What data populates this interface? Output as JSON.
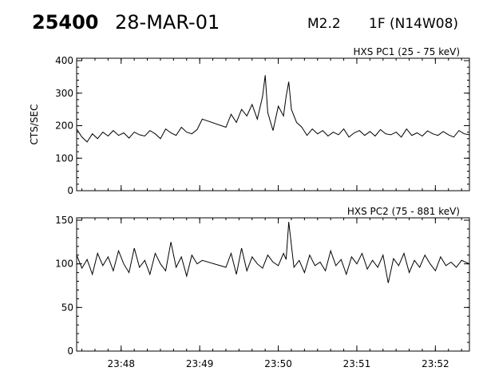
{
  "header": {
    "event_id": "25400",
    "date": "28-MAR-01",
    "flare_class": "M2.2",
    "flare_location": "1F (N14W08)"
  },
  "chart_data": [
    {
      "type": "line",
      "title": "HXS PC1 (25 - 75 keV)",
      "ylabel": "CTS/SEC",
      "xlim": [
        "23:47:26",
        "23:52:26"
      ],
      "ylim": [
        0,
        400
      ],
      "yticks": [
        0,
        100,
        200,
        300,
        400
      ],
      "xticks": [
        "23:48",
        "23:49",
        "23:50",
        "23:51",
        "23:52"
      ],
      "series": [
        {
          "x": [
            "23:47:26",
            "23:47:30",
            "23:47:34",
            "23:47:38",
            "23:47:42",
            "23:47:46",
            "23:47:50",
            "23:47:54",
            "23:47:58",
            "23:48:02",
            "23:48:06",
            "23:48:10",
            "23:48:14",
            "23:48:18",
            "23:48:22",
            "23:48:26",
            "23:48:30",
            "23:48:34",
            "23:48:38",
            "23:48:42",
            "23:48:46",
            "23:48:50",
            "23:48:54",
            "23:48:58",
            "23:49:02",
            "23:49:20",
            "23:49:24",
            "23:49:28",
            "23:49:32",
            "23:49:36",
            "23:49:40",
            "23:49:44",
            "23:49:48",
            "23:49:50",
            "23:49:52",
            "23:49:56",
            "23:50:00",
            "23:50:04",
            "23:50:06",
            "23:50:08",
            "23:50:10",
            "23:50:14",
            "23:50:18",
            "23:50:22",
            "23:50:26",
            "23:50:30",
            "23:50:34",
            "23:50:38",
            "23:50:42",
            "23:50:46",
            "23:50:50",
            "23:50:54",
            "23:50:58",
            "23:51:02",
            "23:51:06",
            "23:51:10",
            "23:51:14",
            "23:51:18",
            "23:51:22",
            "23:51:26",
            "23:51:30",
            "23:51:34",
            "23:51:38",
            "23:51:42",
            "23:51:46",
            "23:51:50",
            "23:51:54",
            "23:51:58",
            "23:52:02",
            "23:52:06",
            "23:52:10",
            "23:52:14",
            "23:52:18",
            "23:52:22",
            "23:52:26"
          ],
          "values": [
            190,
            165,
            150,
            175,
            160,
            180,
            168,
            185,
            170,
            178,
            162,
            180,
            172,
            168,
            185,
            175,
            160,
            190,
            178,
            170,
            195,
            180,
            175,
            188,
            220,
            195,
            235,
            210,
            250,
            230,
            265,
            220,
            290,
            355,
            240,
            185,
            260,
            230,
            290,
            335,
            250,
            210,
            195,
            170,
            190,
            175,
            185,
            168,
            180,
            172,
            190,
            165,
            178,
            185,
            170,
            182,
            168,
            188,
            175,
            172,
            180,
            165,
            190,
            170,
            178,
            168,
            184,
            175,
            170,
            182,
            172,
            165,
            185,
            175,
            172
          ]
        }
      ]
    },
    {
      "type": "line",
      "title": "HXS PC2 (75 - 881 keV)",
      "ylabel": "",
      "xlim": [
        "23:47:26",
        "23:52:26"
      ],
      "ylim": [
        0,
        150
      ],
      "yticks": [
        0,
        50,
        100,
        150
      ],
      "xticks": [
        "23:48",
        "23:49",
        "23:50",
        "23:51",
        "23:52"
      ],
      "series": [
        {
          "x": [
            "23:47:26",
            "23:47:30",
            "23:47:34",
            "23:47:38",
            "23:47:42",
            "23:47:46",
            "23:47:50",
            "23:47:54",
            "23:47:58",
            "23:48:02",
            "23:48:06",
            "23:48:10",
            "23:48:14",
            "23:48:18",
            "23:48:22",
            "23:48:26",
            "23:48:30",
            "23:48:34",
            "23:48:38",
            "23:48:42",
            "23:48:46",
            "23:48:50",
            "23:48:54",
            "23:48:58",
            "23:49:02",
            "23:49:20",
            "23:49:24",
            "23:49:28",
            "23:49:32",
            "23:49:36",
            "23:49:40",
            "23:49:44",
            "23:49:48",
            "23:49:52",
            "23:49:56",
            "23:50:00",
            "23:50:04",
            "23:50:06",
            "23:50:08",
            "23:50:12",
            "23:50:16",
            "23:50:20",
            "23:50:24",
            "23:50:28",
            "23:50:32",
            "23:50:36",
            "23:50:40",
            "23:50:44",
            "23:50:48",
            "23:50:52",
            "23:50:56",
            "23:51:00",
            "23:51:04",
            "23:51:08",
            "23:51:12",
            "23:51:16",
            "23:51:20",
            "23:51:24",
            "23:51:28",
            "23:51:32",
            "23:51:36",
            "23:51:40",
            "23:51:44",
            "23:51:48",
            "23:51:52",
            "23:51:56",
            "23:52:00",
            "23:52:04",
            "23:52:08",
            "23:52:12",
            "23:52:16",
            "23:52:20",
            "23:52:26"
          ],
          "values": [
            110,
            95,
            105,
            88,
            112,
            98,
            108,
            92,
            115,
            100,
            90,
            118,
            96,
            104,
            88,
            112,
            100,
            92,
            125,
            96,
            108,
            86,
            110,
            100,
            104,
            96,
            112,
            88,
            118,
            92,
            108,
            100,
            95,
            110,
            102,
            98,
            112,
            105,
            148,
            96,
            104,
            90,
            110,
            98,
            102,
            92,
            115,
            98,
            105,
            88,
            108,
            100,
            112,
            94,
            104,
            96,
            110,
            78,
            106,
            98,
            112,
            90,
            104,
            96,
            110,
            100,
            92,
            108,
            98,
            102,
            96,
            104,
            100
          ]
        }
      ]
    }
  ]
}
